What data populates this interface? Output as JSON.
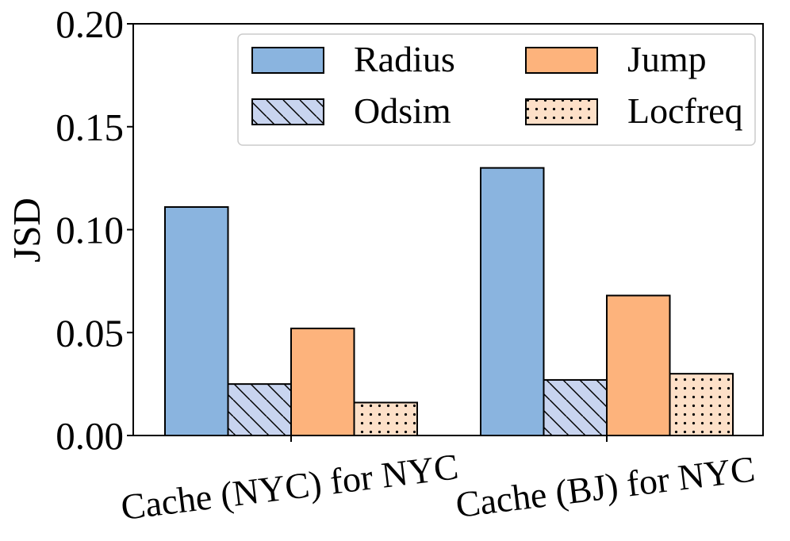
{
  "chart_data": {
    "type": "bar",
    "ylabel": "JSD",
    "ylim": [
      0,
      0.2
    ],
    "yticks": [
      "0.00",
      "0.05",
      "0.10",
      "0.15",
      "0.20"
    ],
    "categories": [
      "Cache (NYC) for NYC",
      "Cache (BJ) for NYC"
    ],
    "legend_position": "top-right",
    "grid": false,
    "series": [
      {
        "name": "Radius",
        "values": [
          0.111,
          0.13
        ],
        "color": "#8ab4df",
        "pattern": "none"
      },
      {
        "name": "Odsim",
        "values": [
          0.025,
          0.027
        ],
        "color": "#c8d4ef",
        "pattern": "diagonal-hatch"
      },
      {
        "name": "Jump",
        "values": [
          0.052,
          0.068
        ],
        "color": "#fdb37c",
        "pattern": "none"
      },
      {
        "name": "Locfreq",
        "values": [
          0.016,
          0.03
        ],
        "color": "#fde0c8",
        "pattern": "dots"
      }
    ]
  }
}
